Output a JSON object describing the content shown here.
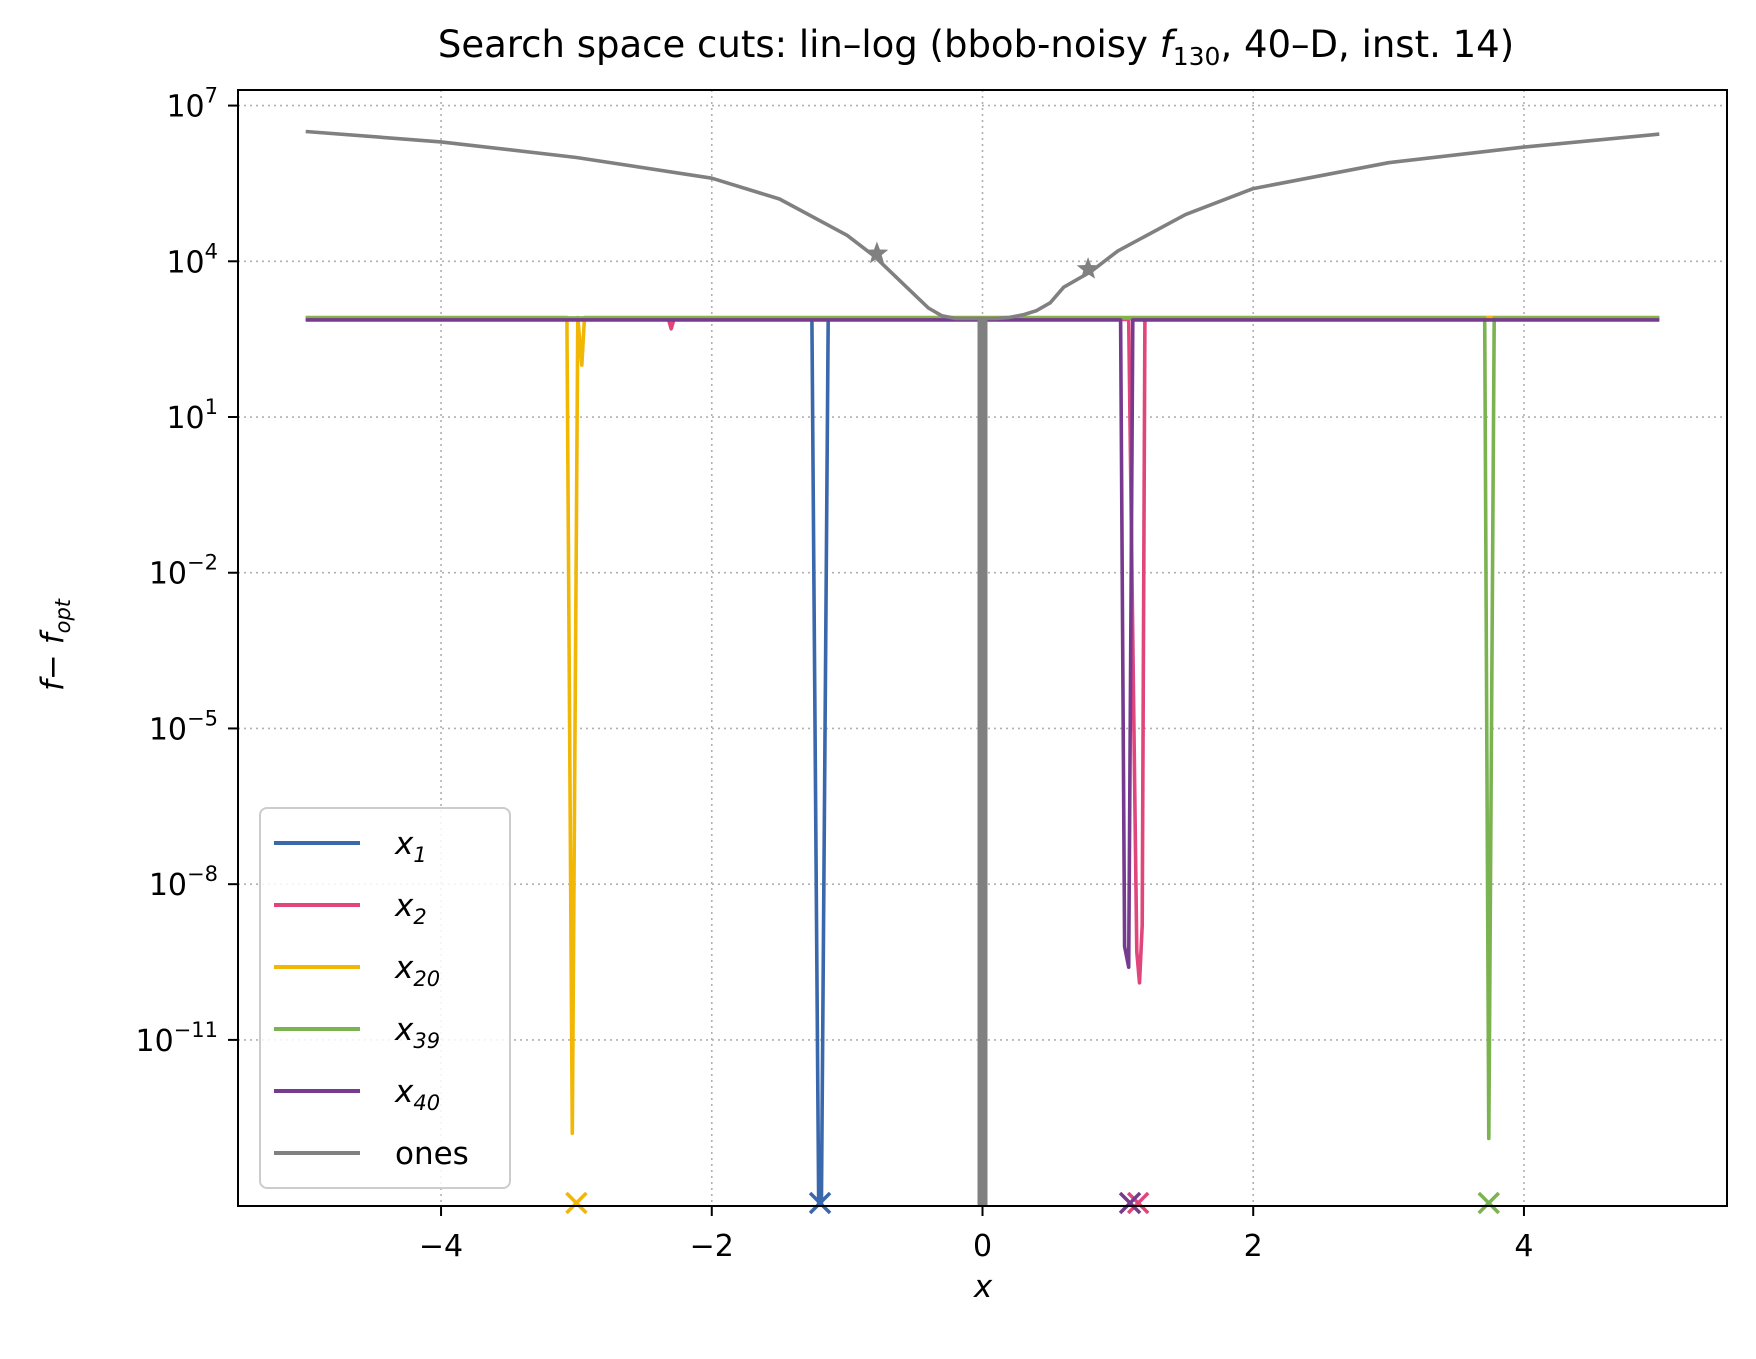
{
  "chart_data": {
    "type": "line",
    "title": {
      "main": "Search space cuts: lin–log (bbob-noisy ",
      "func": "f",
      "func_sub": "130",
      "rest": ", 40–D, inst. 14)"
    },
    "xlabel": "x",
    "ylabel": {
      "main": "f− f",
      "sub": "opt"
    },
    "xscale": "linear",
    "yscale": "log",
    "xlim": [
      -5.5,
      5.5
    ],
    "ylim_log10": [
      -14.2,
      7.3
    ],
    "grid": true,
    "x_ticks": [
      {
        "value": -4,
        "label": "−4"
      },
      {
        "value": -2,
        "label": "−2"
      },
      {
        "value": 0,
        "label": "0"
      },
      {
        "value": 2,
        "label": "2"
      },
      {
        "value": 4,
        "label": "4"
      }
    ],
    "y_ticks": [
      {
        "log10": 7,
        "base": "10",
        "exp": "7"
      },
      {
        "log10": 4,
        "base": "10",
        "exp": "4"
      },
      {
        "log10": 1,
        "base": "10",
        "exp": "1"
      },
      {
        "log10": -2,
        "base": "10",
        "exp": "−2"
      },
      {
        "log10": -5,
        "base": "10",
        "exp": "−5"
      },
      {
        "log10": -8,
        "base": "10",
        "exp": "−8"
      },
      {
        "log10": -11,
        "base": "10",
        "exp": "−11"
      }
    ],
    "legend_position": "lower-left",
    "series": [
      {
        "name": "x",
        "name_sub": "1",
        "color": "#3a68ad",
        "flat_log10": 2.9,
        "points": [
          [
            -5,
            2.9
          ],
          [
            -1.26,
            2.9
          ],
          [
            -1.21,
            -14.2
          ],
          [
            -1.19,
            -14.2
          ],
          [
            -1.14,
            2.9
          ],
          [
            5,
            2.9
          ]
        ],
        "marker_x": -1.2
      },
      {
        "name": "x",
        "name_sub": "2",
        "color": "#e0457b",
        "flat_log10": 2.88,
        "points": [
          [
            -5,
            2.88
          ],
          [
            -2.32,
            2.88
          ],
          [
            -2.3,
            2.7
          ],
          [
            -2.28,
            2.88
          ],
          [
            1.08,
            2.88
          ],
          [
            1.14,
            -9.3
          ],
          [
            1.16,
            -9.9
          ],
          [
            1.18,
            -8.8
          ],
          [
            1.2,
            2.88
          ],
          [
            5,
            2.88
          ]
        ],
        "marker_x": 1.15
      },
      {
        "name": "x",
        "name_sub": "20",
        "color": "#f2b705",
        "flat_log10": 2.92,
        "points": [
          [
            -5,
            2.92
          ],
          [
            -3.07,
            2.92
          ],
          [
            -3.03,
            -12.8
          ],
          [
            -2.99,
            2.92
          ],
          [
            -2.96,
            2.0
          ],
          [
            -2.94,
            2.92
          ],
          [
            5,
            2.92
          ]
        ],
        "marker_x": -3.0
      },
      {
        "name": "x",
        "name_sub": "39",
        "color": "#7cb351",
        "flat_log10": 2.91,
        "points": [
          [
            -5,
            2.91
          ],
          [
            3.71,
            2.91
          ],
          [
            3.74,
            -12.9
          ],
          [
            3.78,
            2.91
          ],
          [
            5,
            2.91
          ]
        ],
        "marker_x": 3.74
      },
      {
        "name": "x",
        "name_sub": "40",
        "color": "#763b8e",
        "flat_log10": 2.87,
        "points": [
          [
            -5,
            2.87
          ],
          [
            1.02,
            2.87
          ],
          [
            1.05,
            -9.2
          ],
          [
            1.08,
            -9.6
          ],
          [
            1.11,
            2.87
          ],
          [
            5,
            2.87
          ]
        ],
        "marker_x": 1.09
      },
      {
        "name": "ones",
        "color": "#808080",
        "points": [
          [
            -5,
            6.5
          ],
          [
            -4,
            6.3
          ],
          [
            -3,
            6.0
          ],
          [
            -2,
            5.6
          ],
          [
            -1.5,
            5.2
          ],
          [
            -1,
            4.5
          ],
          [
            -0.8,
            4.1
          ],
          [
            -0.6,
            3.6
          ],
          [
            -0.4,
            3.1
          ],
          [
            -0.3,
            2.95
          ],
          [
            -0.2,
            2.9
          ],
          [
            -0.1,
            2.9
          ],
          [
            0,
            2.9
          ],
          [
            0.1,
            2.9
          ],
          [
            0.2,
            2.92
          ],
          [
            0.3,
            2.97
          ],
          [
            0.4,
            3.05
          ],
          [
            0.5,
            3.2
          ],
          [
            0.6,
            3.5
          ],
          [
            0.8,
            3.8
          ],
          [
            1.0,
            4.2
          ],
          [
            1.5,
            4.9
          ],
          [
            2,
            5.4
          ],
          [
            3,
            5.9
          ],
          [
            4,
            6.2
          ],
          [
            5,
            6.45
          ]
        ],
        "spike_x": 0,
        "star_points": [
          [
            -0.78,
            4.15
          ],
          [
            0.78,
            3.85
          ]
        ]
      }
    ]
  }
}
